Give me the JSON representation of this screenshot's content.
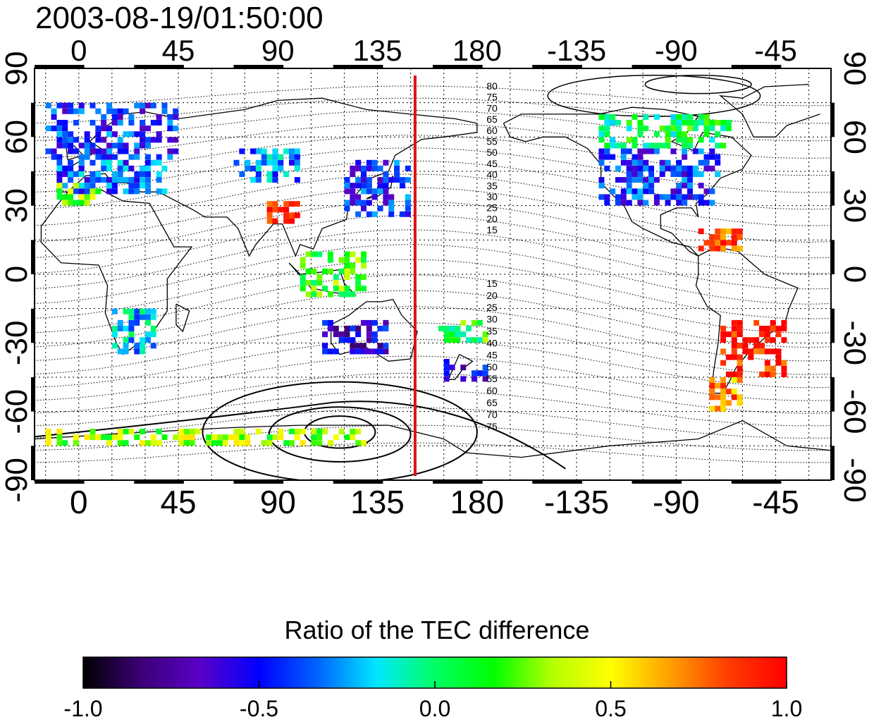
{
  "title": "2003-08-19/01:50:00",
  "map": {
    "lon_ticks_top": [
      "0",
      "45",
      "90",
      "135",
      "180",
      "-135",
      "-90",
      "-45"
    ],
    "lon_ticks_bottom": [
      "0",
      "45",
      "90",
      "135",
      "180",
      "-135",
      "-90",
      "-45"
    ],
    "lat_ticks_left": [
      "90",
      "60",
      "30",
      "0",
      "-30",
      "-60",
      "-90"
    ],
    "lat_ticks_right": [
      "90",
      "60",
      "30",
      "0",
      "-30",
      "-60",
      "-90"
    ],
    "terminator_longitude": 152,
    "terminator_color": "#dd1111",
    "contour_labels_north": [
      "80",
      "75",
      "70",
      "65",
      "60",
      "55",
      "50",
      "45",
      "40",
      "35",
      "30",
      "25",
      "20",
      "15"
    ],
    "contour_labels_south": [
      "15",
      "20",
      "25",
      "30",
      "35",
      "40",
      "45",
      "50",
      "55",
      "60",
      "65",
      "70",
      "75"
    ]
  },
  "colorbar": {
    "title": "Ratio of the TEC difference",
    "ticks": [
      "-1.0",
      "-0.5",
      "0.0",
      "0.5",
      "1.0"
    ],
    "range": [
      -1.0,
      1.0
    ],
    "colors": [
      "#000000",
      "#3c0078",
      "#5a00c8",
      "#0000ff",
      "#0064ff",
      "#00e6ff",
      "#00ff64",
      "#00ff00",
      "#b4ff00",
      "#ffff00",
      "#ffa000",
      "#ff3c00",
      "#ff0000"
    ]
  },
  "chart_data": {
    "type": "heatmap",
    "title": "2003-08-19/01:50:00",
    "xlabel": "",
    "ylabel": "",
    "xlim": [
      -20,
      340
    ],
    "ylim": [
      -90,
      90
    ],
    "value_label": "Ratio of the TEC difference",
    "value_range": [
      -1.0,
      1.0
    ],
    "regions": [
      {
        "lon": [
          -15,
          45
        ],
        "lat": [
          50,
          75
        ],
        "value": -0.45
      },
      {
        "lon": [
          -10,
          40
        ],
        "lat": [
          35,
          50
        ],
        "value": -0.35
      },
      {
        "lon": [
          -10,
          10
        ],
        "lat": [
          30,
          40
        ],
        "value": 0.25
      },
      {
        "lon": [
          70,
          100
        ],
        "lat": [
          40,
          55
        ],
        "value": -0.3
      },
      {
        "lon": [
          85,
          100
        ],
        "lat": [
          22,
          32
        ],
        "value": 0.9
      },
      {
        "lon": [
          120,
          150
        ],
        "lat": [
          25,
          50
        ],
        "value": -0.45
      },
      {
        "lon": [
          100,
          130
        ],
        "lat": [
          -10,
          10
        ],
        "value": 0.2
      },
      {
        "lon": [
          15,
          35
        ],
        "lat": [
          -35,
          -15
        ],
        "value": -0.2
      },
      {
        "lon": [
          110,
          140
        ],
        "lat": [
          -35,
          -20
        ],
        "value": -0.6
      },
      {
        "lon": [
          160,
          185
        ],
        "lat": [
          -30,
          -20
        ],
        "value": 0.1
      },
      {
        "lon": [
          165,
          185
        ],
        "lat": [
          -47,
          -37
        ],
        "value": -0.6
      },
      {
        "lon": [
          -125,
          -70
        ],
        "lat": [
          30,
          55
        ],
        "value": -0.45
      },
      {
        "lon": [
          -125,
          -65
        ],
        "lat": [
          55,
          70
        ],
        "value": 0.05
      },
      {
        "lon": [
          -80,
          -60
        ],
        "lat": [
          10,
          20
        ],
        "value": 0.8
      },
      {
        "lon": [
          -70,
          -40
        ],
        "lat": [
          -45,
          -20
        ],
        "value": 0.95
      },
      {
        "lon": [
          -75,
          -60
        ],
        "lat": [
          -60,
          -45
        ],
        "value": 0.7
      },
      {
        "lon": [
          -15,
          130
        ],
        "lat": [
          -75,
          -68
        ],
        "value": 0.3
      }
    ]
  }
}
